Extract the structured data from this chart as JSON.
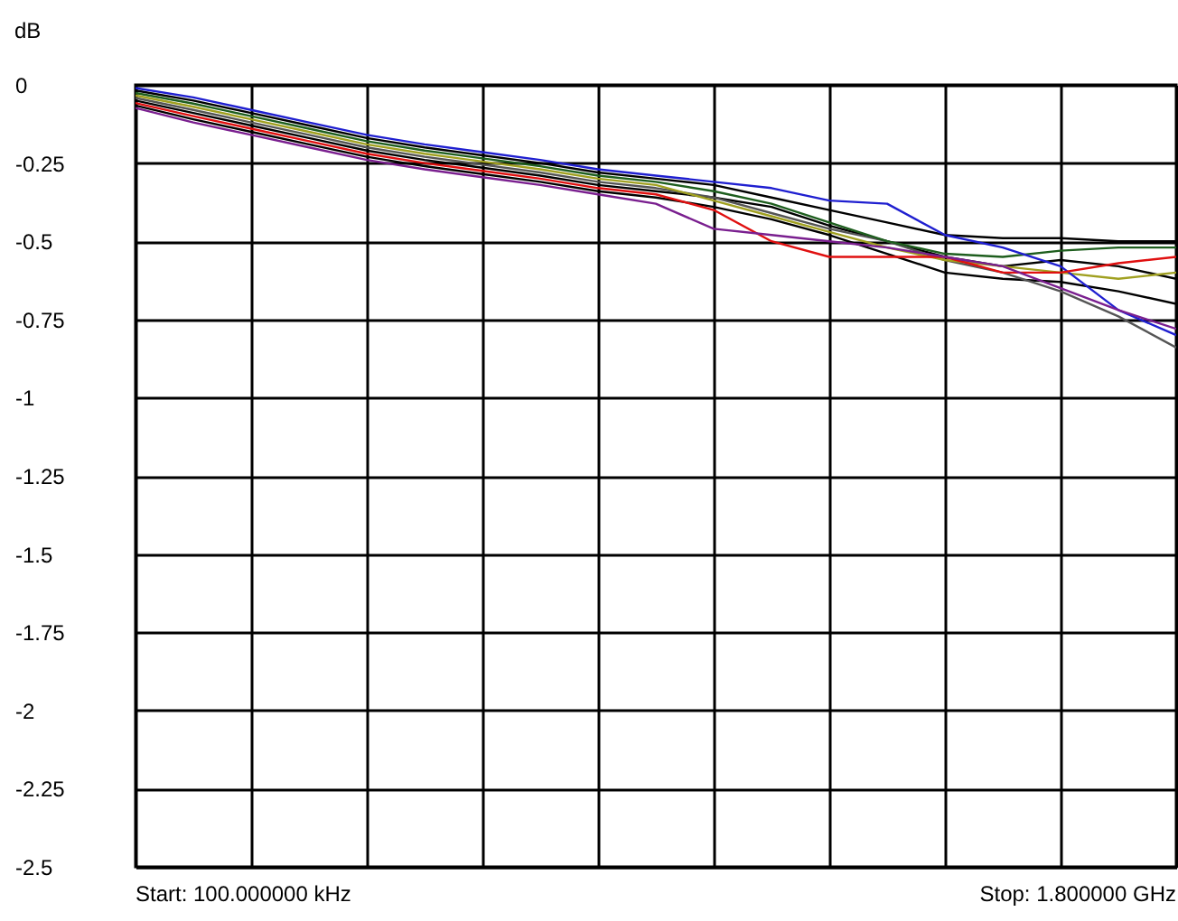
{
  "chart_data": {
    "type": "line",
    "ylabel": "dB",
    "ylim": [
      -2.5,
      0
    ],
    "yticks": [
      0,
      -0.25,
      -0.5,
      -0.75,
      -1,
      -1.25,
      -1.5,
      -1.75,
      -2,
      -2.25,
      -2.5
    ],
    "grid": true,
    "tick_labels": "y",
    "categories": [
      null,
      null,
      null,
      null,
      null,
      null,
      null,
      null,
      null,
      null,
      null,
      null,
      null,
      null,
      null,
      null,
      null,
      null,
      null
    ],
    "annotations": [
      "Start: 100.000000 kHz",
      "Stop: 1.800000 GHz"
    ],
    "series": [
      {
        "color": "#000000",
        "values": [
          -0.018,
          -0.05,
          -0.09,
          -0.13,
          -0.17,
          -0.2,
          -0.225,
          -0.25,
          -0.28,
          -0.3,
          -0.32,
          -0.36,
          -0.4,
          -0.44,
          -0.48,
          -0.49,
          -0.49,
          -0.5,
          -0.5
        ]
      },
      {
        "color": "#000000",
        "values": [
          -0.05,
          -0.09,
          -0.13,
          -0.17,
          -0.21,
          -0.24,
          -0.265,
          -0.29,
          -0.32,
          -0.34,
          -0.36,
          -0.39,
          -0.45,
          -0.5,
          -0.55,
          -0.58,
          -0.56,
          -0.58,
          -0.62
        ]
      },
      {
        "color": "#000000",
        "values": [
          -0.066,
          -0.11,
          -0.15,
          -0.19,
          -0.23,
          -0.26,
          -0.285,
          -0.31,
          -0.34,
          -0.36,
          -0.39,
          -0.43,
          -0.48,
          -0.54,
          -0.6,
          -0.62,
          -0.63,
          -0.66,
          -0.7
        ]
      },
      {
        "color": "#555555",
        "values": [
          -0.042,
          -0.08,
          -0.12,
          -0.16,
          -0.2,
          -0.23,
          -0.255,
          -0.28,
          -0.31,
          -0.33,
          -0.36,
          -0.41,
          -0.46,
          -0.5,
          -0.56,
          -0.6,
          -0.66,
          -0.74,
          -0.84
        ]
      },
      {
        "color": "#1e5e1e",
        "values": [
          -0.026,
          -0.06,
          -0.1,
          -0.14,
          -0.18,
          -0.21,
          -0.235,
          -0.26,
          -0.29,
          -0.31,
          -0.34,
          -0.38,
          -0.44,
          -0.5,
          -0.54,
          -0.55,
          -0.53,
          -0.52,
          -0.52
        ]
      },
      {
        "color": "#a0a020",
        "values": [
          -0.034,
          -0.07,
          -0.11,
          -0.15,
          -0.19,
          -0.22,
          -0.245,
          -0.27,
          -0.3,
          -0.32,
          -0.37,
          -0.42,
          -0.47,
          -0.52,
          -0.56,
          -0.58,
          -0.6,
          -0.62,
          -0.6
        ]
      },
      {
        "color": "#1f1fd0",
        "values": [
          -0.01,
          -0.04,
          -0.08,
          -0.12,
          -0.16,
          -0.19,
          -0.215,
          -0.24,
          -0.27,
          -0.29,
          -0.31,
          -0.33,
          -0.37,
          -0.38,
          -0.48,
          -0.52,
          -0.58,
          -0.72,
          -0.8
        ]
      },
      {
        "color": "#e01010",
        "values": [
          -0.058,
          -0.1,
          -0.14,
          -0.18,
          -0.22,
          -0.25,
          -0.275,
          -0.3,
          -0.33,
          -0.35,
          -0.4,
          -0.5,
          -0.55,
          -0.55,
          -0.55,
          -0.6,
          -0.6,
          -0.57,
          -0.55
        ]
      },
      {
        "color": "#7a1f8f",
        "values": [
          -0.074,
          -0.12,
          -0.16,
          -0.2,
          -0.24,
          -0.27,
          -0.295,
          -0.32,
          -0.35,
          -0.38,
          -0.46,
          -0.48,
          -0.5,
          -0.52,
          -0.55,
          -0.58,
          -0.65,
          -0.72,
          -0.78
        ]
      }
    ]
  }
}
